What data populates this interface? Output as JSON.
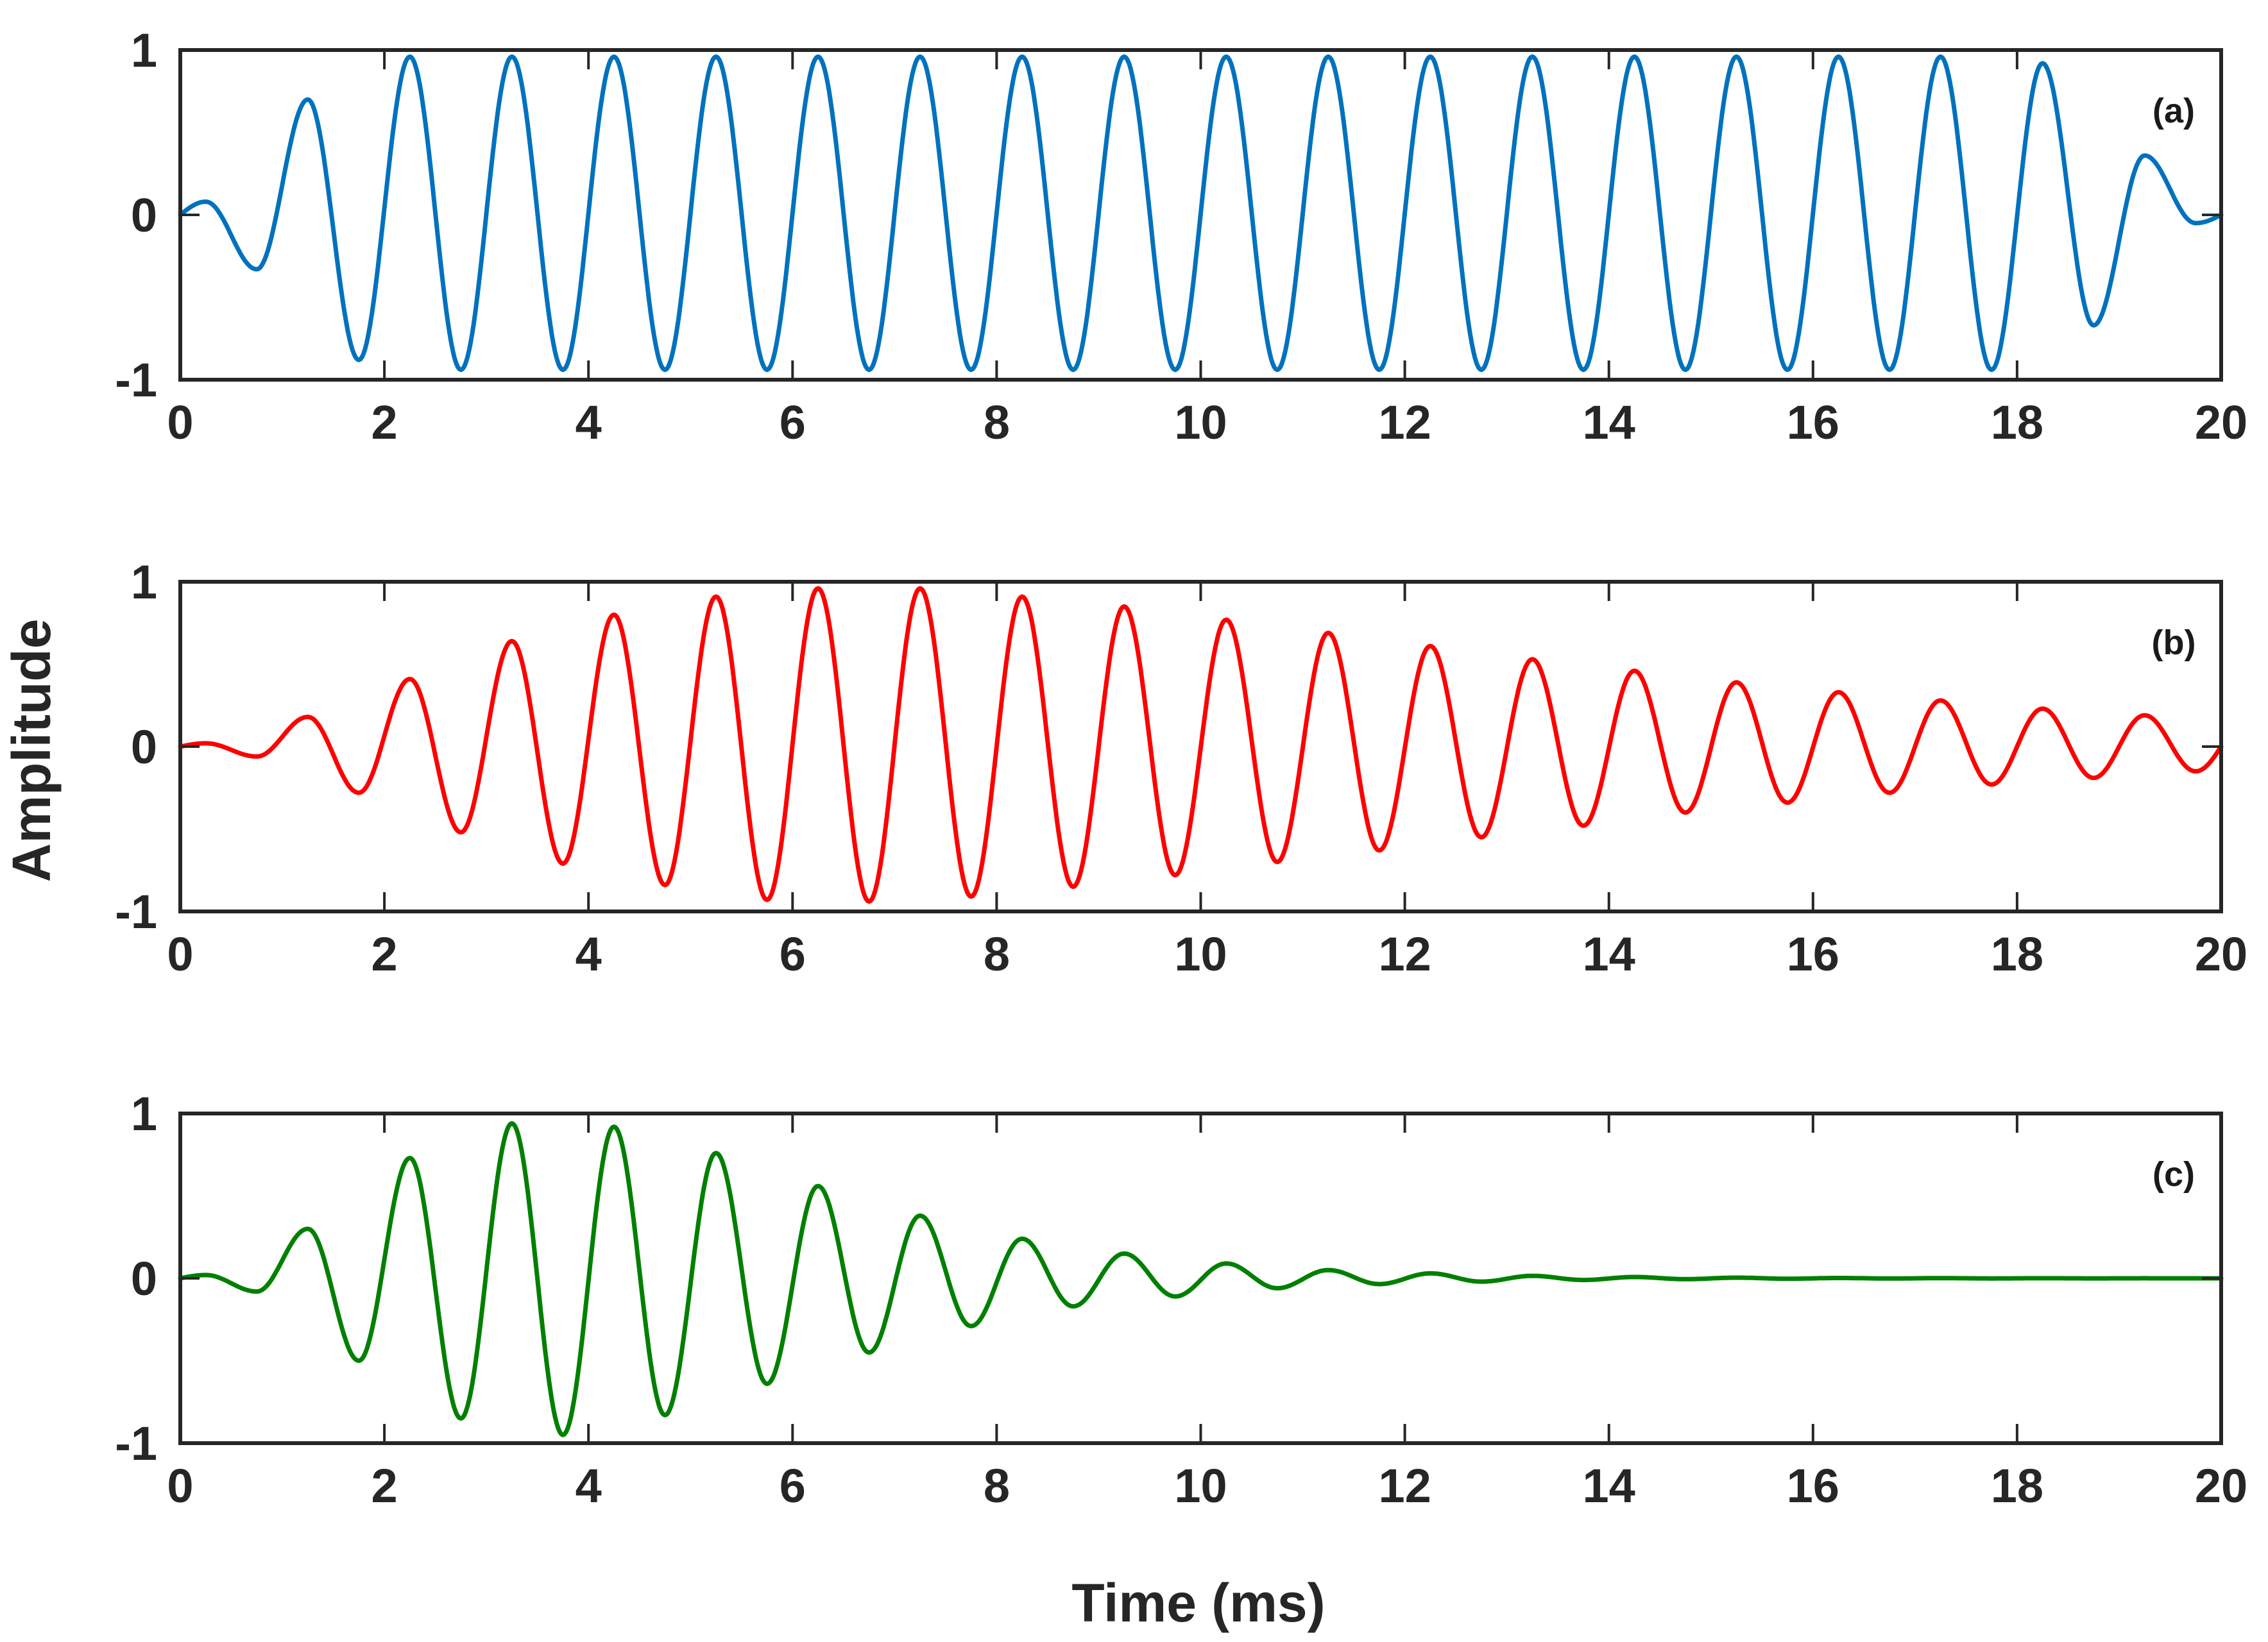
{
  "chart_data": [
    {
      "type": "line",
      "panel_label": "(a)",
      "xlim": [
        0,
        20
      ],
      "ylim": [
        -1,
        1
      ],
      "x_ticks": [
        0,
        2,
        4,
        6,
        8,
        10,
        12,
        14,
        16,
        18,
        20
      ],
      "y_ticks": [
        -1,
        0,
        1
      ],
      "x_tick_labels": [
        "0",
        "2",
        "4",
        "6",
        "8",
        "10",
        "12",
        "14",
        "16",
        "18",
        "20"
      ],
      "y_tick_labels": [
        "-1",
        "0",
        "1"
      ],
      "grid": false,
      "series": [
        {
          "color": "#0072BD",
          "signal": "tapered constant-amplitude sinusoid",
          "frequency_khz": 1.0,
          "peak_times_ms": [
            0.25,
            1.25,
            2.25,
            3.25,
            4.25,
            5.25,
            6.25,
            7.25,
            8.25,
            9.25,
            10.25,
            11.25,
            12.25,
            13.25,
            14.25,
            15.25,
            16.25,
            17.25,
            18.25,
            19.25
          ],
          "peak_values": [
            0.08,
            0.7,
            0.96,
            0.96,
            0.96,
            0.96,
            0.96,
            0.96,
            0.96,
            0.96,
            0.96,
            0.96,
            0.96,
            0.96,
            0.96,
            0.96,
            0.96,
            0.96,
            0.92,
            0.36
          ],
          "trough_times_ms": [
            0.75,
            1.75,
            2.75,
            3.75,
            4.75,
            5.75,
            6.75,
            7.75,
            8.75,
            9.75,
            10.75,
            11.75,
            12.75,
            13.75,
            14.75,
            15.75,
            16.75,
            17.75,
            18.75,
            19.75
          ],
          "trough_values": [
            -0.33,
            -0.88,
            -0.94,
            -0.94,
            -0.94,
            -0.94,
            -0.94,
            -0.94,
            -0.94,
            -0.94,
            -0.94,
            -0.94,
            -0.94,
            -0.94,
            -0.94,
            -0.94,
            -0.94,
            -0.94,
            -0.67,
            -0.05
          ]
        }
      ]
    },
    {
      "type": "line",
      "panel_label": "(b)",
      "ylabel": "Amplitude",
      "xlim": [
        0,
        20
      ],
      "ylim": [
        -1,
        1
      ],
      "x_ticks": [
        0,
        2,
        4,
        6,
        8,
        10,
        12,
        14,
        16,
        18,
        20
      ],
      "y_ticks": [
        -1,
        0,
        1
      ],
      "x_tick_labels": [
        "0",
        "2",
        "4",
        "6",
        "8",
        "10",
        "12",
        "14",
        "16",
        "18",
        "20"
      ],
      "y_tick_labels": [
        "-1",
        "0",
        "1"
      ],
      "grid": false,
      "series": [
        {
          "color": "#FF0000",
          "signal": "sinusoid with slow rise and slow decay envelope",
          "frequency_khz": 1.0,
          "peak_times_ms": [
            0.25,
            1.25,
            2.25,
            3.25,
            4.25,
            5.25,
            6.25,
            7.25,
            8.25,
            9.25,
            10.25,
            11.25,
            12.25,
            13.25,
            14.25,
            15.25,
            16.25,
            17.25,
            18.25,
            19.25
          ],
          "peak_values": [
            0.02,
            0.18,
            0.41,
            0.64,
            0.8,
            0.91,
            0.96,
            0.96,
            0.91,
            0.85,
            0.77,
            0.69,
            0.61,
            0.53,
            0.46,
            0.39,
            0.33,
            0.28,
            0.23,
            0.19
          ],
          "trough_times_ms": [
            0.75,
            1.75,
            2.75,
            3.75,
            4.75,
            5.75,
            6.75,
            7.75,
            8.75,
            9.75,
            10.75,
            11.75,
            12.75,
            13.75,
            14.75,
            15.75,
            16.75,
            17.75,
            18.75,
            19.75
          ],
          "trough_values": [
            -0.06,
            -0.28,
            -0.52,
            -0.71,
            -0.84,
            -0.93,
            -0.94,
            -0.91,
            -0.85,
            -0.78,
            -0.7,
            -0.63,
            -0.55,
            -0.48,
            -0.4,
            -0.34,
            -0.28,
            -0.23,
            -0.19,
            -0.15
          ]
        }
      ]
    },
    {
      "type": "line",
      "panel_label": "(c)",
      "xlabel": "Time (ms)",
      "xlim": [
        0,
        20
      ],
      "ylim": [
        -1,
        1
      ],
      "x_ticks": [
        0,
        2,
        4,
        6,
        8,
        10,
        12,
        14,
        16,
        18,
        20
      ],
      "y_ticks": [
        -1,
        0,
        1
      ],
      "x_tick_labels": [
        "0",
        "2",
        "4",
        "6",
        "8",
        "10",
        "12",
        "14",
        "16",
        "18",
        "20"
      ],
      "y_tick_labels": [
        "-1",
        "0",
        "1"
      ],
      "grid": false,
      "series": [
        {
          "color": "#008000",
          "signal": "sinusoid with fast rise and exponential decay envelope",
          "frequency_khz": 1.0,
          "peak_times_ms": [
            0.25,
            1.25,
            2.25,
            3.25,
            4.25,
            5.25,
            6.25,
            7.25,
            8.25,
            9.25,
            10.25,
            11.25,
            12.25,
            13.25,
            14.25,
            15.25,
            16.25,
            17.25,
            18.25,
            19.25
          ],
          "peak_values": [
            0.02,
            0.3,
            0.73,
            0.94,
            0.92,
            0.76,
            0.56,
            0.38,
            0.24,
            0.15,
            0.09,
            0.05,
            0.03,
            0.015,
            0.008,
            0.004,
            0.002,
            0.001,
            0.0005,
            0.0002
          ],
          "trough_times_ms": [
            0.75,
            1.75,
            2.75,
            3.75,
            4.75,
            5.75,
            6.75,
            7.75,
            8.75,
            9.75,
            10.75,
            11.75,
            12.75,
            13.75,
            14.75,
            15.75,
            16.75,
            17.75,
            18.75,
            19.75
          ],
          "trough_values": [
            -0.08,
            -0.5,
            -0.85,
            -0.95,
            -0.83,
            -0.64,
            -0.45,
            -0.29,
            -0.17,
            -0.11,
            -0.06,
            -0.035,
            -0.02,
            -0.01,
            -0.005,
            -0.0025,
            -0.001,
            -0.0006,
            -0.0003,
            -0.0001
          ]
        }
      ]
    }
  ]
}
